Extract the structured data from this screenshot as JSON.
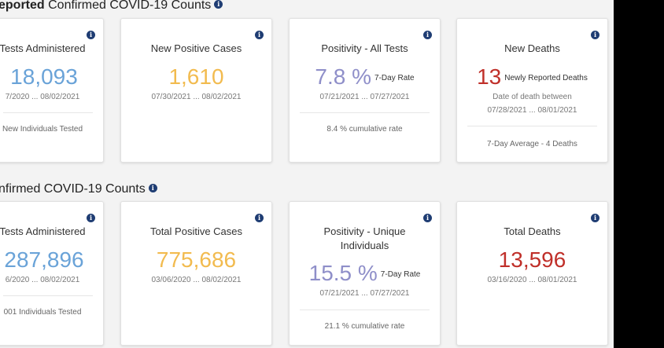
{
  "section1": {
    "title_bold": "eported",
    "title_rest": " Confirmed COVID-19 Counts"
  },
  "section2": {
    "title": "nfirmed COVID-19 Counts"
  },
  "cards_row1": {
    "tests": {
      "title": "Tests Administered",
      "value": "18,093",
      "date": "7/2020 ... 08/02/2021",
      "footer": "New Individuals Tested"
    },
    "positive": {
      "title": "New Positive Cases",
      "value": "1,610",
      "date": "07/30/2021 ... 08/02/2021"
    },
    "positivity": {
      "title": "Positivity - All Tests",
      "value": "7.8 %",
      "suffix": "7-Day Rate",
      "date": "07/21/2021 ... 07/27/2021",
      "footer": "8.4 % cumulative rate"
    },
    "deaths": {
      "title": "New Deaths",
      "value": "13",
      "suffix": "Newly Reported Deaths",
      "line1": "Date of death between",
      "date": "07/28/2021 ... 08/01/2021",
      "footer": "7-Day Average - 4 Deaths"
    }
  },
  "cards_row2": {
    "tests": {
      "title": "Tests Administered",
      "value": "287,896",
      "date": "6/2020 ... 08/02/2021",
      "footer": "001 Individuals Tested"
    },
    "positive": {
      "title": "Total Positive Cases",
      "value": "775,686",
      "date": "03/06/2020 ... 08/02/2021"
    },
    "positivity": {
      "title_line1": "Positivity - Unique",
      "title_line2": "Individuals",
      "value": "15.5 %",
      "suffix": "7-Day Rate",
      "date": "07/21/2021 ... 07/27/2021",
      "footer": "21.1 % cumulative rate"
    },
    "deaths": {
      "title": "Total Deaths",
      "value": "13,596",
      "date": "03/16/2020 ... 08/01/2021"
    }
  },
  "info_glyph": "i",
  "colors": {
    "blue": "#6aa3d8",
    "orange": "#f2bb4f",
    "purple": "#8f8fc9",
    "red": "#c0302a"
  }
}
